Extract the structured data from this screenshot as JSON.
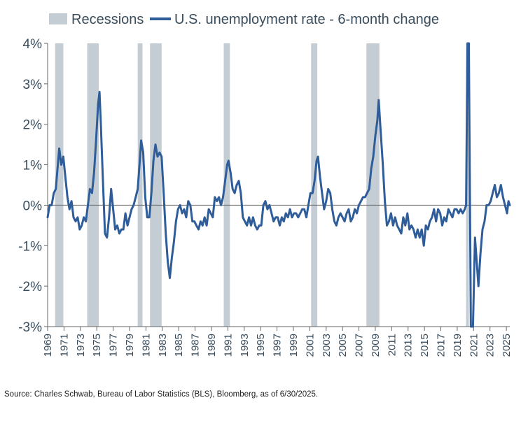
{
  "chart_data": {
    "type": "line",
    "title": "",
    "xlabel": "",
    "ylabel": "",
    "ylim": [
      -3,
      4
    ],
    "xlim": [
      "1969-01",
      "2025-06"
    ],
    "y_ticks": [
      4,
      3,
      2,
      1,
      0,
      -1,
      -2,
      -3
    ],
    "y_tick_labels": [
      "4%",
      "3%",
      "2%",
      "1%",
      "0%",
      "-1%",
      "-2%",
      "-3%"
    ],
    "x_ticks": [
      "1969",
      "1971",
      "1973",
      "1975",
      "1977",
      "1979",
      "1981",
      "1983",
      "1985",
      "1987",
      "1989",
      "1991",
      "1993",
      "1995",
      "1997",
      "1999",
      "2001",
      "2003",
      "2005",
      "2007",
      "2009",
      "2011",
      "2013",
      "2015",
      "2017",
      "2019",
      "2021",
      "2023",
      "2025"
    ],
    "grid": false,
    "legend": "top-left",
    "legend_entries": [
      {
        "label": "Recessions",
        "color": "#c4ccd4",
        "kind": "band"
      },
      {
        "label": "U.S. unemployment rate - 6-month change",
        "color": "#2f5d99",
        "kind": "line"
      }
    ],
    "recessions": [
      {
        "start": "1969-12",
        "end": "1970-11"
      },
      {
        "start": "1973-11",
        "end": "1975-03"
      },
      {
        "start": "1980-01",
        "end": "1980-07"
      },
      {
        "start": "1981-07",
        "end": "1982-11"
      },
      {
        "start": "1990-07",
        "end": "1991-03"
      },
      {
        "start": "2001-03",
        "end": "2001-11"
      },
      {
        "start": "2007-12",
        "end": "2009-06"
      },
      {
        "start": "2020-02",
        "end": "2020-04"
      }
    ],
    "series": [
      {
        "name": "U.S. unemployment rate - 6-month change",
        "color": "#2f5d99",
        "points": [
          [
            "1969-01",
            -0.3
          ],
          [
            "1969-04",
            0.0
          ],
          [
            "1969-07",
            0.0
          ],
          [
            "1969-10",
            0.3
          ],
          [
            "1970-01",
            0.4
          ],
          [
            "1970-04",
            1.0
          ],
          [
            "1970-06",
            1.4
          ],
          [
            "1970-09",
            1.0
          ],
          [
            "1970-12",
            1.2
          ],
          [
            "1971-03",
            0.7
          ],
          [
            "1971-06",
            0.2
          ],
          [
            "1971-09",
            -0.1
          ],
          [
            "1971-12",
            0.1
          ],
          [
            "1972-03",
            -0.3
          ],
          [
            "1972-06",
            -0.4
          ],
          [
            "1972-09",
            -0.3
          ],
          [
            "1972-12",
            -0.6
          ],
          [
            "1973-03",
            -0.5
          ],
          [
            "1973-06",
            -0.3
          ],
          [
            "1973-09",
            -0.4
          ],
          [
            "1973-12",
            0.0
          ],
          [
            "1974-03",
            0.4
          ],
          [
            "1974-06",
            0.3
          ],
          [
            "1974-09",
            0.8
          ],
          [
            "1974-12",
            1.6
          ],
          [
            "1975-03",
            2.5
          ],
          [
            "1975-05",
            2.8
          ],
          [
            "1975-07",
            2.0
          ],
          [
            "1975-10",
            0.6
          ],
          [
            "1976-01",
            -0.7
          ],
          [
            "1976-04",
            -0.8
          ],
          [
            "1976-07",
            -0.3
          ],
          [
            "1976-10",
            0.4
          ],
          [
            "1977-01",
            -0.1
          ],
          [
            "1977-04",
            -0.6
          ],
          [
            "1977-07",
            -0.5
          ],
          [
            "1977-10",
            -0.7
          ],
          [
            "1978-01",
            -0.6
          ],
          [
            "1978-04",
            -0.6
          ],
          [
            "1978-07",
            -0.2
          ],
          [
            "1978-10",
            -0.5
          ],
          [
            "1979-01",
            -0.3
          ],
          [
            "1979-04",
            -0.1
          ],
          [
            "1979-07",
            0.0
          ],
          [
            "1979-10",
            0.2
          ],
          [
            "1980-01",
            0.4
          ],
          [
            "1980-04",
            1.1
          ],
          [
            "1980-06",
            1.6
          ],
          [
            "1980-09",
            1.3
          ],
          [
            "1980-12",
            0.2
          ],
          [
            "1981-03",
            -0.3
          ],
          [
            "1981-06",
            -0.3
          ],
          [
            "1981-09",
            0.3
          ],
          [
            "1981-12",
            1.1
          ],
          [
            "1982-03",
            1.5
          ],
          [
            "1982-06",
            1.2
          ],
          [
            "1982-09",
            1.3
          ],
          [
            "1982-12",
            1.2
          ],
          [
            "1983-03",
            0.3
          ],
          [
            "1983-06",
            -0.7
          ],
          [
            "1983-09",
            -1.4
          ],
          [
            "1983-12",
            -1.8
          ],
          [
            "1984-03",
            -1.3
          ],
          [
            "1984-06",
            -0.9
          ],
          [
            "1984-09",
            -0.4
          ],
          [
            "1984-12",
            -0.1
          ],
          [
            "1985-03",
            0.0
          ],
          [
            "1985-06",
            -0.2
          ],
          [
            "1985-09",
            -0.1
          ],
          [
            "1985-12",
            -0.3
          ],
          [
            "1986-03",
            0.1
          ],
          [
            "1986-06",
            0.0
          ],
          [
            "1986-09",
            -0.4
          ],
          [
            "1986-12",
            -0.4
          ],
          [
            "1987-03",
            -0.5
          ],
          [
            "1987-06",
            -0.6
          ],
          [
            "1987-09",
            -0.4
          ],
          [
            "1987-12",
            -0.5
          ],
          [
            "1988-03",
            -0.3
          ],
          [
            "1988-06",
            -0.5
          ],
          [
            "1988-09",
            -0.1
          ],
          [
            "1988-12",
            -0.2
          ],
          [
            "1989-03",
            -0.3
          ],
          [
            "1989-06",
            0.2
          ],
          [
            "1989-09",
            0.1
          ],
          [
            "1989-12",
            0.2
          ],
          [
            "1990-03",
            0.0
          ],
          [
            "1990-06",
            0.2
          ],
          [
            "1990-09",
            0.6
          ],
          [
            "1990-12",
            1.0
          ],
          [
            "1991-02",
            1.1
          ],
          [
            "1991-05",
            0.8
          ],
          [
            "1991-08",
            0.4
          ],
          [
            "1991-11",
            0.3
          ],
          [
            "1992-02",
            0.5
          ],
          [
            "1992-05",
            0.6
          ],
          [
            "1992-08",
            0.3
          ],
          [
            "1992-11",
            -0.3
          ],
          [
            "1993-02",
            -0.4
          ],
          [
            "1993-05",
            -0.5
          ],
          [
            "1993-08",
            -0.3
          ],
          [
            "1993-11",
            -0.5
          ],
          [
            "1994-02",
            -0.3
          ],
          [
            "1994-05",
            -0.5
          ],
          [
            "1994-08",
            -0.6
          ],
          [
            "1994-11",
            -0.5
          ],
          [
            "1995-02",
            -0.5
          ],
          [
            "1995-05",
            0.0
          ],
          [
            "1995-08",
            0.1
          ],
          [
            "1995-11",
            -0.1
          ],
          [
            "1996-02",
            0.0
          ],
          [
            "1996-05",
            -0.2
          ],
          [
            "1996-08",
            -0.4
          ],
          [
            "1996-11",
            -0.3
          ],
          [
            "1997-02",
            -0.3
          ],
          [
            "1997-05",
            -0.5
          ],
          [
            "1997-08",
            -0.3
          ],
          [
            "1997-11",
            -0.4
          ],
          [
            "1998-02",
            -0.2
          ],
          [
            "1998-05",
            -0.3
          ],
          [
            "1998-08",
            -0.1
          ],
          [
            "1998-11",
            -0.3
          ],
          [
            "1999-02",
            -0.2
          ],
          [
            "1999-05",
            -0.2
          ],
          [
            "1999-08",
            -0.3
          ],
          [
            "1999-11",
            -0.2
          ],
          [
            "2000-02",
            -0.1
          ],
          [
            "2000-05",
            -0.1
          ],
          [
            "2000-08",
            -0.3
          ],
          [
            "2000-11",
            0.0
          ],
          [
            "2001-02",
            0.3
          ],
          [
            "2001-05",
            0.3
          ],
          [
            "2001-08",
            0.6
          ],
          [
            "2001-11",
            1.1
          ],
          [
            "2002-01",
            1.2
          ],
          [
            "2002-04",
            0.7
          ],
          [
            "2002-07",
            0.3
          ],
          [
            "2002-10",
            -0.1
          ],
          [
            "2003-01",
            0.1
          ],
          [
            "2003-04",
            0.4
          ],
          [
            "2003-07",
            0.3
          ],
          [
            "2003-10",
            -0.1
          ],
          [
            "2004-01",
            -0.4
          ],
          [
            "2004-04",
            -0.5
          ],
          [
            "2004-07",
            -0.3
          ],
          [
            "2004-10",
            -0.2
          ],
          [
            "2005-01",
            -0.3
          ],
          [
            "2005-04",
            -0.4
          ],
          [
            "2005-07",
            -0.2
          ],
          [
            "2005-10",
            -0.1
          ],
          [
            "2006-01",
            -0.4
          ],
          [
            "2006-04",
            -0.3
          ],
          [
            "2006-07",
            -0.1
          ],
          [
            "2006-10",
            -0.2
          ],
          [
            "2007-01",
            0.0
          ],
          [
            "2007-04",
            0.1
          ],
          [
            "2007-07",
            0.2
          ],
          [
            "2007-10",
            0.2
          ],
          [
            "2008-01",
            0.3
          ],
          [
            "2008-04",
            0.4
          ],
          [
            "2008-07",
            0.9
          ],
          [
            "2008-10",
            1.2
          ],
          [
            "2009-01",
            1.7
          ],
          [
            "2009-04",
            2.1
          ],
          [
            "2009-06",
            2.6
          ],
          [
            "2009-09",
            1.8
          ],
          [
            "2009-12",
            1.0
          ],
          [
            "2010-03",
            0.1
          ],
          [
            "2010-06",
            -0.5
          ],
          [
            "2010-09",
            -0.4
          ],
          [
            "2010-12",
            -0.2
          ],
          [
            "2011-03",
            -0.5
          ],
          [
            "2011-06",
            -0.3
          ],
          [
            "2011-09",
            -0.5
          ],
          [
            "2011-12",
            -0.6
          ],
          [
            "2012-03",
            -0.7
          ],
          [
            "2012-06",
            -0.3
          ],
          [
            "2012-09",
            -0.5
          ],
          [
            "2012-12",
            -0.2
          ],
          [
            "2013-03",
            -0.6
          ],
          [
            "2013-06",
            -0.5
          ],
          [
            "2013-09",
            -0.6
          ],
          [
            "2013-12",
            -0.8
          ],
          [
            "2014-03",
            -0.6
          ],
          [
            "2014-06",
            -0.8
          ],
          [
            "2014-09",
            -0.6
          ],
          [
            "2014-12",
            -1.0
          ],
          [
            "2015-03",
            -0.5
          ],
          [
            "2015-06",
            -0.6
          ],
          [
            "2015-09",
            -0.4
          ],
          [
            "2015-12",
            -0.3
          ],
          [
            "2016-03",
            -0.1
          ],
          [
            "2016-06",
            -0.4
          ],
          [
            "2016-09",
            -0.1
          ],
          [
            "2016-12",
            -0.2
          ],
          [
            "2017-03",
            -0.5
          ],
          [
            "2017-06",
            -0.3
          ],
          [
            "2017-09",
            -0.4
          ],
          [
            "2017-12",
            -0.1
          ],
          [
            "2018-03",
            -0.2
          ],
          [
            "2018-06",
            -0.3
          ],
          [
            "2018-09",
            -0.1
          ],
          [
            "2018-12",
            -0.1
          ],
          [
            "2019-03",
            -0.2
          ],
          [
            "2019-06",
            -0.1
          ],
          [
            "2019-09",
            -0.2
          ],
          [
            "2019-12",
            -0.1
          ],
          [
            "2020-02",
            0.0
          ],
          [
            "2020-04",
            4.0
          ],
          [
            "2020-06",
            4.0
          ],
          [
            "2020-09",
            -3.0
          ],
          [
            "2020-12",
            -3.0
          ],
          [
            "2021-03",
            -0.8
          ],
          [
            "2021-06",
            -1.5
          ],
          [
            "2021-08",
            -2.0
          ],
          [
            "2021-11",
            -1.2
          ],
          [
            "2022-02",
            -0.6
          ],
          [
            "2022-05",
            -0.4
          ],
          [
            "2022-08",
            0.0
          ],
          [
            "2022-11",
            0.0
          ],
          [
            "2023-02",
            0.1
          ],
          [
            "2023-05",
            0.3
          ],
          [
            "2023-08",
            0.5
          ],
          [
            "2023-11",
            0.2
          ],
          [
            "2024-02",
            0.3
          ],
          [
            "2024-05",
            0.5
          ],
          [
            "2024-08",
            0.2
          ],
          [
            "2024-11",
            0.0
          ],
          [
            "2025-02",
            -0.2
          ],
          [
            "2025-04",
            0.1
          ],
          [
            "2025-06",
            0.0
          ]
        ]
      }
    ]
  },
  "source_note": "Source: Charles Schwab, Bureau of Labor Statistics (BLS), Bloomberg, as of 6/30/2025."
}
